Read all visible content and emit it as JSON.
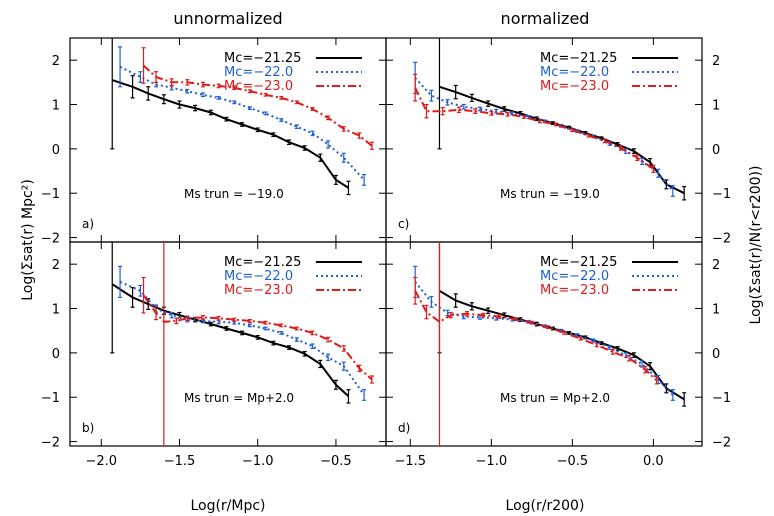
{
  "figure": {
    "col_titles": [
      "unnormalized",
      "normalized"
    ],
    "xlabel_left": "Log(r/Mpc)",
    "xlabel_right": "Log(r/r200)",
    "ylabel_left": "Log(Σsat(r) Mpc²)",
    "ylabel_right": "Log(Σsat(r)/N(r<r200))",
    "legend_labels": [
      "Mc=−21.25",
      "Mc=−22.0",
      "Mc=−23.0"
    ]
  },
  "chart_data": [
    {
      "type": "line",
      "panel": "a)",
      "annotation": "Ms trun = −19.0",
      "xlim": [
        -2.2,
        -0.18
      ],
      "ylim": [
        -2.1,
        2.5
      ],
      "xticks": [
        -2.0,
        -1.5,
        -1.0,
        -0.5
      ],
      "yticks": [
        -2,
        -1,
        0,
        1,
        2
      ],
      "series": [
        {
          "name": "Mc=−21.25",
          "color": "#000000",
          "style": "solid",
          "x": [
            -1.93,
            -1.8,
            -1.7,
            -1.6,
            -1.5,
            -1.4,
            -1.3,
            -1.2,
            -1.1,
            -1.0,
            -0.9,
            -0.8,
            -0.7,
            -0.6,
            -0.5,
            -0.42
          ],
          "y": [
            1.55,
            1.4,
            1.25,
            1.12,
            1.0,
            0.92,
            0.82,
            0.67,
            0.55,
            0.43,
            0.32,
            0.15,
            0.02,
            -0.2,
            -0.7,
            -0.88
          ],
          "err": [
            1.55,
            0.25,
            0.15,
            0.1,
            0.08,
            0.06,
            0.05,
            0.04,
            0.04,
            0.04,
            0.04,
            0.05,
            0.05,
            0.08,
            0.1,
            0.15
          ]
        },
        {
          "name": "Mc=−22.0",
          "color": "#1f5fd6",
          "style": "dotted",
          "x": [
            -1.88,
            -1.75,
            -1.65,
            -1.55,
            -1.45,
            -1.35,
            -1.25,
            -1.15,
            -1.05,
            -0.95,
            -0.85,
            -0.75,
            -0.65,
            -0.55,
            -0.45,
            -0.32
          ],
          "y": [
            1.85,
            1.62,
            1.45,
            1.38,
            1.3,
            1.22,
            1.15,
            1.05,
            0.92,
            0.8,
            0.65,
            0.5,
            0.35,
            0.1,
            -0.2,
            -0.7
          ],
          "err": [
            0.45,
            0.12,
            0.05,
            0.05,
            0.04,
            0.04,
            0.03,
            0.03,
            0.03,
            0.03,
            0.03,
            0.04,
            0.05,
            0.08,
            0.1,
            0.12
          ]
        },
        {
          "name": "Mc=−23.0",
          "color": "#e01b1b",
          "style": "dashdot",
          "x": [
            -1.73,
            -1.65,
            -1.55,
            -1.45,
            -1.35,
            -1.25,
            -1.15,
            -1.05,
            -0.95,
            -0.85,
            -0.75,
            -0.65,
            -0.55,
            -0.45,
            -0.35,
            -0.27
          ],
          "y": [
            1.88,
            1.62,
            1.5,
            1.5,
            1.45,
            1.42,
            1.38,
            1.3,
            1.22,
            1.15,
            1.05,
            0.9,
            0.7,
            0.45,
            0.3,
            0.07
          ],
          "err": [
            0.4,
            0.12,
            0.08,
            0.06,
            0.05,
            0.04,
            0.04,
            0.03,
            0.03,
            0.03,
            0.03,
            0.03,
            0.04,
            0.05,
            0.06,
            0.08
          ]
        }
      ]
    },
    {
      "type": "line",
      "panel": "c)",
      "annotation": "Ms trun = −19.0",
      "xlim": [
        -1.65,
        0.3
      ],
      "ylim": [
        -2.1,
        2.5
      ],
      "xticks": [
        -1.5,
        -1.0,
        -0.5,
        0.0
      ],
      "yticks": [
        -2,
        -1,
        0,
        1,
        2
      ],
      "series": [
        {
          "name": "Mc=−21.25",
          "color": "#000000",
          "style": "solid",
          "x": [
            -1.32,
            -1.22,
            -1.12,
            -1.02,
            -0.92,
            -0.82,
            -0.72,
            -0.62,
            -0.52,
            -0.42,
            -0.32,
            -0.22,
            -0.12,
            -0.02,
            0.08,
            0.19
          ],
          "y": [
            1.4,
            1.28,
            1.15,
            1.02,
            0.9,
            0.8,
            0.68,
            0.58,
            0.48,
            0.36,
            0.24,
            0.1,
            -0.05,
            -0.3,
            -0.8,
            -1.0
          ],
          "err": [
            1.4,
            0.15,
            0.08,
            0.06,
            0.05,
            0.04,
            0.04,
            0.03,
            0.03,
            0.03,
            0.03,
            0.04,
            0.05,
            0.08,
            0.1,
            0.15
          ]
        },
        {
          "name": "Mc=−22.0",
          "color": "#1f5fd6",
          "style": "dotted",
          "x": [
            -1.47,
            -1.37,
            -1.27,
            -1.17,
            -1.07,
            -0.97,
            -0.87,
            -0.77,
            -0.67,
            -0.57,
            -0.47,
            -0.37,
            -0.27,
            -0.17,
            -0.07,
            0.03,
            0.12
          ],
          "y": [
            1.6,
            1.2,
            1.05,
            0.95,
            0.9,
            0.85,
            0.8,
            0.72,
            0.62,
            0.52,
            0.4,
            0.28,
            0.12,
            -0.05,
            -0.28,
            -0.55,
            -0.95
          ],
          "err": [
            0.35,
            0.12,
            0.06,
            0.05,
            0.04,
            0.04,
            0.03,
            0.03,
            0.03,
            0.03,
            0.03,
            0.03,
            0.04,
            0.05,
            0.07,
            0.09,
            0.12
          ]
        },
        {
          "name": "Mc=−23.0",
          "color": "#e01b1b",
          "style": "dashdot",
          "x": [
            -1.47,
            -1.4,
            -1.3,
            -1.2,
            -1.1,
            -1.0,
            -0.9,
            -0.8,
            -0.7,
            -0.6,
            -0.5,
            -0.4,
            -0.3,
            -0.2,
            -0.1,
            0.0
          ],
          "y": [
            1.38,
            0.85,
            0.85,
            0.88,
            0.85,
            0.8,
            0.78,
            0.72,
            0.62,
            0.55,
            0.42,
            0.3,
            0.18,
            0.02,
            -0.2,
            -0.45
          ],
          "err": [
            0.3,
            0.15,
            0.08,
            0.06,
            0.05,
            0.04,
            0.04,
            0.03,
            0.03,
            0.03,
            0.03,
            0.03,
            0.04,
            0.05,
            0.06,
            0.08
          ]
        }
      ]
    },
    {
      "type": "line",
      "panel": "b)",
      "annotation": "Ms trun = Mp+2.0",
      "xlim": [
        -2.2,
        -0.18
      ],
      "ylim": [
        -2.1,
        2.5
      ],
      "xticks": [
        -2.0,
        -1.5,
        -1.0,
        -0.5
      ],
      "yticks": [
        -2,
        -1,
        0,
        1,
        2
      ],
      "series": [
        {
          "name": "Mc=−21.25",
          "color": "#000000",
          "style": "solid",
          "x": [
            -1.93,
            -1.8,
            -1.7,
            -1.6,
            -1.5,
            -1.4,
            -1.3,
            -1.2,
            -1.1,
            -1.0,
            -0.9,
            -0.8,
            -0.7,
            -0.6,
            -0.5,
            -0.42
          ],
          "y": [
            1.55,
            1.25,
            1.1,
            0.95,
            0.85,
            0.75,
            0.65,
            0.55,
            0.45,
            0.35,
            0.22,
            0.12,
            -0.02,
            -0.25,
            -0.72,
            -0.98
          ],
          "err": [
            1.55,
            0.22,
            0.12,
            0.08,
            0.06,
            0.05,
            0.04,
            0.04,
            0.04,
            0.04,
            0.04,
            0.04,
            0.05,
            0.08,
            0.1,
            0.15
          ]
        },
        {
          "name": "Mc=−22.0",
          "color": "#1f5fd6",
          "style": "dotted",
          "x": [
            -1.88,
            -1.75,
            -1.65,
            -1.55,
            -1.45,
            -1.35,
            -1.25,
            -1.15,
            -1.05,
            -0.95,
            -0.85,
            -0.75,
            -0.65,
            -0.55,
            -0.45,
            -0.32
          ],
          "y": [
            1.6,
            1.4,
            1.0,
            0.85,
            0.75,
            0.72,
            0.7,
            0.68,
            0.62,
            0.55,
            0.45,
            0.3,
            0.15,
            -0.1,
            -0.3,
            -0.95
          ],
          "err": [
            0.35,
            0.12,
            0.08,
            0.06,
            0.05,
            0.04,
            0.04,
            0.03,
            0.03,
            0.03,
            0.03,
            0.04,
            0.05,
            0.07,
            0.09,
            0.12
          ]
        },
        {
          "name": "Mc=−23.0",
          "color": "#e01b1b",
          "style": "dashdot",
          "x": [
            -1.73,
            -1.65,
            -1.6,
            -1.52,
            -1.45,
            -1.35,
            -1.25,
            -1.15,
            -1.05,
            -0.95,
            -0.85,
            -0.75,
            -0.65,
            -0.55,
            -0.45,
            -0.35,
            -0.27
          ],
          "y": [
            1.3,
            0.9,
            0.7,
            0.72,
            0.78,
            0.8,
            0.78,
            0.75,
            0.72,
            0.68,
            0.62,
            0.55,
            0.45,
            0.3,
            0.1,
            -0.35,
            -0.6
          ],
          "err": [
            0.4,
            0.15,
            3.0,
            0.06,
            0.05,
            0.04,
            0.04,
            0.03,
            0.03,
            0.03,
            0.03,
            0.03,
            0.04,
            0.05,
            0.06,
            0.07,
            0.08
          ]
        }
      ]
    },
    {
      "type": "line",
      "panel": "d)",
      "annotation": "Ms trun = Mp+2.0",
      "xlim": [
        -1.65,
        0.3
      ],
      "ylim": [
        -2.1,
        2.5
      ],
      "xticks": [
        -1.5,
        -1.0,
        -0.5,
        0.0
      ],
      "yticks": [
        -2,
        -1,
        0,
        1,
        2
      ],
      "series": [
        {
          "name": "Mc=−21.25",
          "color": "#000000",
          "style": "solid",
          "x": [
            -1.32,
            -1.22,
            -1.12,
            -1.02,
            -0.92,
            -0.82,
            -0.72,
            -0.62,
            -0.52,
            -0.42,
            -0.32,
            -0.22,
            -0.12,
            -0.02,
            0.08,
            0.19
          ],
          "y": [
            1.4,
            1.18,
            1.05,
            0.95,
            0.85,
            0.75,
            0.65,
            0.55,
            0.45,
            0.35,
            0.22,
            0.1,
            -0.05,
            -0.3,
            -0.8,
            -1.05
          ],
          "err": [
            1.4,
            0.15,
            0.08,
            0.06,
            0.05,
            0.04,
            0.04,
            0.03,
            0.03,
            0.03,
            0.03,
            0.04,
            0.05,
            0.08,
            0.1,
            0.15
          ]
        },
        {
          "name": "Mc=−22.0",
          "color": "#1f5fd6",
          "style": "dotted",
          "x": [
            -1.47,
            -1.37,
            -1.27,
            -1.17,
            -1.07,
            -0.97,
            -0.87,
            -0.77,
            -0.67,
            -0.57,
            -0.47,
            -0.37,
            -0.27,
            -0.17,
            -0.07,
            0.03,
            0.12
          ],
          "y": [
            1.6,
            1.15,
            0.9,
            0.82,
            0.8,
            0.78,
            0.75,
            0.7,
            0.6,
            0.5,
            0.4,
            0.28,
            0.12,
            -0.05,
            -0.25,
            -0.6,
            -0.95
          ],
          "err": [
            0.35,
            0.12,
            0.06,
            0.05,
            0.04,
            0.04,
            0.03,
            0.03,
            0.03,
            0.03,
            0.03,
            0.03,
            0.04,
            0.05,
            0.07,
            0.09,
            0.12
          ]
        },
        {
          "name": "Mc=−23.0",
          "color": "#e01b1b",
          "style": "dashdot",
          "x": [
            -1.47,
            -1.4,
            -1.32,
            -1.25,
            -1.15,
            -1.05,
            -0.95,
            -0.85,
            -0.75,
            -0.65,
            -0.55,
            -0.45,
            -0.35,
            -0.25,
            -0.15,
            -0.05,
            0.02
          ],
          "y": [
            1.4,
            0.92,
            0.7,
            0.85,
            0.88,
            0.85,
            0.82,
            0.76,
            0.68,
            0.58,
            0.45,
            0.32,
            0.18,
            0.02,
            -0.12,
            -0.38,
            -0.62
          ],
          "err": [
            0.3,
            0.15,
            3.0,
            0.06,
            0.05,
            0.04,
            0.04,
            0.03,
            0.03,
            0.03,
            0.03,
            0.03,
            0.04,
            0.05,
            0.06,
            0.07,
            0.08
          ]
        }
      ]
    }
  ]
}
